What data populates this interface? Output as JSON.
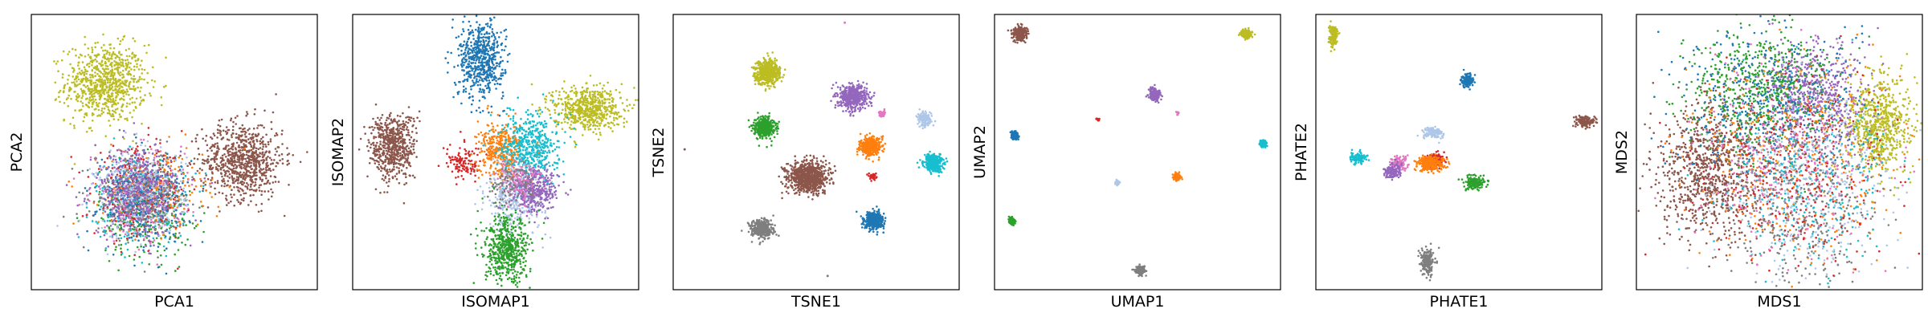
{
  "palette": {
    "blue": "#1f77b4",
    "orange": "#ff7f0e",
    "green": "#2ca02c",
    "red": "#d62728",
    "purple": "#9467bd",
    "brown": "#8c564b",
    "pink": "#e377c2",
    "gray": "#7f7f7f",
    "olive": "#bcbd22",
    "cyan": "#17becf",
    "lightblue": "#aec7e8"
  },
  "chart_data": [
    {
      "type": "scatter",
      "xlabel": "PCA1",
      "ylabel": "PCA2",
      "xlim": [
        0,
        1
      ],
      "ylim": [
        0,
        1
      ],
      "grid": false,
      "clusters": [
        {
          "color": "olive",
          "x": 0.26,
          "y": 0.75,
          "sx": 0.07,
          "sy": 0.07,
          "n": 800
        },
        {
          "color": "brown",
          "x": 0.74,
          "y": 0.47,
          "sx": 0.07,
          "sy": 0.07,
          "n": 800
        },
        {
          "color": "green",
          "x": 0.4,
          "y": 0.28,
          "sx": 0.08,
          "sy": 0.08,
          "n": 300
        },
        {
          "color": "cyan",
          "x": 0.38,
          "y": 0.33,
          "sx": 0.08,
          "sy": 0.08,
          "n": 300
        },
        {
          "color": "orange",
          "x": 0.42,
          "y": 0.36,
          "sx": 0.09,
          "sy": 0.07,
          "n": 300
        },
        {
          "color": "pink",
          "x": 0.37,
          "y": 0.34,
          "sx": 0.08,
          "sy": 0.08,
          "n": 300
        },
        {
          "color": "red",
          "x": 0.38,
          "y": 0.35,
          "sx": 0.08,
          "sy": 0.08,
          "n": 250
        },
        {
          "color": "gray",
          "x": 0.38,
          "y": 0.34,
          "sx": 0.08,
          "sy": 0.08,
          "n": 250
        },
        {
          "color": "blue",
          "x": 0.39,
          "y": 0.34,
          "sx": 0.08,
          "sy": 0.08,
          "n": 300
        },
        {
          "color": "lightblue",
          "x": 0.38,
          "y": 0.35,
          "sx": 0.08,
          "sy": 0.08,
          "n": 300
        },
        {
          "color": "purple",
          "x": 0.37,
          "y": 0.36,
          "sx": 0.08,
          "sy": 0.08,
          "n": 350
        }
      ]
    },
    {
      "type": "scatter",
      "xlabel": "ISOMAP1",
      "ylabel": "ISOMAP2",
      "xlim": [
        0,
        1
      ],
      "ylim": [
        0,
        1
      ],
      "grid": false,
      "clusters": [
        {
          "color": "blue",
          "x": 0.45,
          "y": 0.84,
          "sx": 0.04,
          "sy": 0.07,
          "n": 600
        },
        {
          "color": "olive",
          "x": 0.82,
          "y": 0.66,
          "sx": 0.06,
          "sy": 0.04,
          "n": 600
        },
        {
          "color": "brown",
          "x": 0.14,
          "y": 0.52,
          "sx": 0.04,
          "sy": 0.06,
          "n": 600
        },
        {
          "color": "red",
          "x": 0.39,
          "y": 0.46,
          "sx": 0.03,
          "sy": 0.03,
          "n": 120
        },
        {
          "color": "orange",
          "x": 0.52,
          "y": 0.5,
          "sx": 0.04,
          "sy": 0.05,
          "n": 400
        },
        {
          "color": "cyan",
          "x": 0.62,
          "y": 0.52,
          "sx": 0.05,
          "sy": 0.06,
          "n": 500
        },
        {
          "color": "lightblue",
          "x": 0.57,
          "y": 0.34,
          "sx": 0.05,
          "sy": 0.06,
          "n": 350
        },
        {
          "color": "purple",
          "x": 0.64,
          "y": 0.36,
          "sx": 0.04,
          "sy": 0.04,
          "n": 350
        },
        {
          "color": "pink",
          "x": 0.58,
          "y": 0.4,
          "sx": 0.04,
          "sy": 0.04,
          "n": 120
        },
        {
          "color": "gray",
          "x": 0.55,
          "y": 0.38,
          "sx": 0.04,
          "sy": 0.04,
          "n": 100
        },
        {
          "color": "green",
          "x": 0.54,
          "y": 0.14,
          "sx": 0.04,
          "sy": 0.06,
          "n": 550
        }
      ]
    },
    {
      "type": "scatter",
      "xlabel": "TSNE1",
      "ylabel": "TSNE2",
      "xlim": [
        0,
        1
      ],
      "ylim": [
        0,
        1
      ],
      "grid": false,
      "clusters": [
        {
          "color": "olive",
          "x": 0.33,
          "y": 0.79,
          "sx": 0.022,
          "sy": 0.022,
          "n": 500
        },
        {
          "color": "purple",
          "x": 0.63,
          "y": 0.7,
          "sx": 0.025,
          "sy": 0.022,
          "n": 500
        },
        {
          "color": "pink",
          "x": 0.73,
          "y": 0.64,
          "sx": 0.006,
          "sy": 0.006,
          "n": 40
        },
        {
          "color": "lightblue",
          "x": 0.88,
          "y": 0.62,
          "sx": 0.012,
          "sy": 0.012,
          "n": 150
        },
        {
          "color": "green",
          "x": 0.32,
          "y": 0.59,
          "sx": 0.018,
          "sy": 0.018,
          "n": 400
        },
        {
          "color": "orange",
          "x": 0.69,
          "y": 0.52,
          "sx": 0.018,
          "sy": 0.016,
          "n": 400
        },
        {
          "color": "cyan",
          "x": 0.91,
          "y": 0.46,
          "sx": 0.016,
          "sy": 0.015,
          "n": 400
        },
        {
          "color": "brown",
          "x": 0.47,
          "y": 0.41,
          "sx": 0.035,
          "sy": 0.028,
          "n": 800
        },
        {
          "color": "red",
          "x": 0.7,
          "y": 0.41,
          "sx": 0.006,
          "sy": 0.006,
          "n": 40
        },
        {
          "color": "blue",
          "x": 0.7,
          "y": 0.25,
          "sx": 0.017,
          "sy": 0.016,
          "n": 400
        },
        {
          "color": "gray",
          "x": 0.31,
          "y": 0.22,
          "sx": 0.019,
          "sy": 0.016,
          "n": 400
        }
      ],
      "outliers": [
        {
          "color": "pink",
          "x": 0.6,
          "y": 0.97
        },
        {
          "color": "brown",
          "x": 0.04,
          "y": 0.51
        },
        {
          "color": "gray",
          "x": 0.54,
          "y": 0.05
        }
      ]
    },
    {
      "type": "scatter",
      "xlabel": "UMAP1",
      "ylabel": "UMAP2",
      "xlim": [
        0,
        1
      ],
      "ylim": [
        0,
        1
      ],
      "grid": false,
      "clusters": [
        {
          "color": "brown",
          "x": 0.09,
          "y": 0.93,
          "sx": 0.012,
          "sy": 0.012,
          "n": 300
        },
        {
          "color": "olive",
          "x": 0.88,
          "y": 0.93,
          "sx": 0.009,
          "sy": 0.008,
          "n": 200
        },
        {
          "color": "purple",
          "x": 0.56,
          "y": 0.71,
          "sx": 0.01,
          "sy": 0.01,
          "n": 250
        },
        {
          "color": "pink",
          "x": 0.64,
          "y": 0.64,
          "sx": 0.003,
          "sy": 0.003,
          "n": 12
        },
        {
          "color": "red",
          "x": 0.36,
          "y": 0.62,
          "sx": 0.003,
          "sy": 0.003,
          "n": 12
        },
        {
          "color": "blue",
          "x": 0.07,
          "y": 0.56,
          "sx": 0.006,
          "sy": 0.007,
          "n": 120
        },
        {
          "color": "cyan",
          "x": 0.94,
          "y": 0.53,
          "sx": 0.006,
          "sy": 0.006,
          "n": 120
        },
        {
          "color": "orange",
          "x": 0.64,
          "y": 0.41,
          "sx": 0.006,
          "sy": 0.006,
          "n": 120
        },
        {
          "color": "lightblue",
          "x": 0.43,
          "y": 0.39,
          "sx": 0.004,
          "sy": 0.004,
          "n": 40
        },
        {
          "color": "green",
          "x": 0.06,
          "y": 0.25,
          "sx": 0.006,
          "sy": 0.006,
          "n": 120
        },
        {
          "color": "gray",
          "x": 0.51,
          "y": 0.07,
          "sx": 0.008,
          "sy": 0.007,
          "n": 150
        }
      ]
    },
    {
      "type": "scatter",
      "xlabel": "PHATE1",
      "ylabel": "PHATE2",
      "xlim": [
        0,
        1
      ],
      "ylim": [
        0,
        1
      ],
      "grid": false,
      "clusters": [
        {
          "color": "olive",
          "x": 0.06,
          "y": 0.92,
          "sx": 0.008,
          "sy": 0.018,
          "n": 150
        },
        {
          "color": "blue",
          "x": 0.53,
          "y": 0.76,
          "sx": 0.01,
          "sy": 0.012,
          "n": 150
        },
        {
          "color": "brown",
          "x": 0.94,
          "y": 0.61,
          "sx": 0.015,
          "sy": 0.01,
          "n": 150
        },
        {
          "color": "lightblue",
          "x": 0.41,
          "y": 0.57,
          "sx": 0.02,
          "sy": 0.01,
          "n": 120
        },
        {
          "color": "red",
          "x": 0.42,
          "y": 0.47,
          "sx": 0.015,
          "sy": 0.012,
          "n": 120
        },
        {
          "color": "orange",
          "x": 0.4,
          "y": 0.46,
          "sx": 0.025,
          "sy": 0.014,
          "n": 250
        },
        {
          "color": "pink",
          "x": 0.29,
          "y": 0.46,
          "sx": 0.015,
          "sy": 0.014,
          "n": 120
        },
        {
          "color": "purple",
          "x": 0.27,
          "y": 0.43,
          "sx": 0.015,
          "sy": 0.014,
          "n": 120
        },
        {
          "color": "cyan",
          "x": 0.15,
          "y": 0.48,
          "sx": 0.014,
          "sy": 0.01,
          "n": 100
        },
        {
          "color": "green",
          "x": 0.56,
          "y": 0.39,
          "sx": 0.02,
          "sy": 0.012,
          "n": 150
        },
        {
          "color": "gray",
          "x": 0.39,
          "y": 0.1,
          "sx": 0.012,
          "sy": 0.022,
          "n": 200
        }
      ]
    },
    {
      "type": "scatter",
      "xlabel": "MDS1",
      "ylabel": "MDS2",
      "xlim": [
        0,
        1
      ],
      "ylim": [
        0,
        1
      ],
      "grid": false,
      "clusters": [
        {
          "color": "brown",
          "x": 0.25,
          "y": 0.43,
          "sx": 0.09,
          "sy": 0.12,
          "n": 900
        },
        {
          "color": "olive",
          "x": 0.84,
          "y": 0.6,
          "sx": 0.06,
          "sy": 0.09,
          "n": 700
        },
        {
          "color": "purple",
          "x": 0.62,
          "y": 0.7,
          "sx": 0.09,
          "sy": 0.1,
          "n": 600
        },
        {
          "color": "green",
          "x": 0.42,
          "y": 0.72,
          "sx": 0.12,
          "sy": 0.11,
          "n": 600
        },
        {
          "color": "blue",
          "x": 0.45,
          "y": 0.68,
          "sx": 0.16,
          "sy": 0.14,
          "n": 400
        },
        {
          "color": "orange",
          "x": 0.55,
          "y": 0.48,
          "sx": 0.18,
          "sy": 0.18,
          "n": 400
        },
        {
          "color": "cyan",
          "x": 0.6,
          "y": 0.4,
          "sx": 0.15,
          "sy": 0.16,
          "n": 350
        },
        {
          "color": "lightblue",
          "x": 0.6,
          "y": 0.38,
          "sx": 0.14,
          "sy": 0.17,
          "n": 350
        },
        {
          "color": "gray",
          "x": 0.58,
          "y": 0.3,
          "sx": 0.14,
          "sy": 0.14,
          "n": 350
        },
        {
          "color": "red",
          "x": 0.55,
          "y": 0.45,
          "sx": 0.18,
          "sy": 0.18,
          "n": 300
        },
        {
          "color": "pink",
          "x": 0.55,
          "y": 0.45,
          "sx": 0.18,
          "sy": 0.18,
          "n": 300
        }
      ]
    }
  ]
}
